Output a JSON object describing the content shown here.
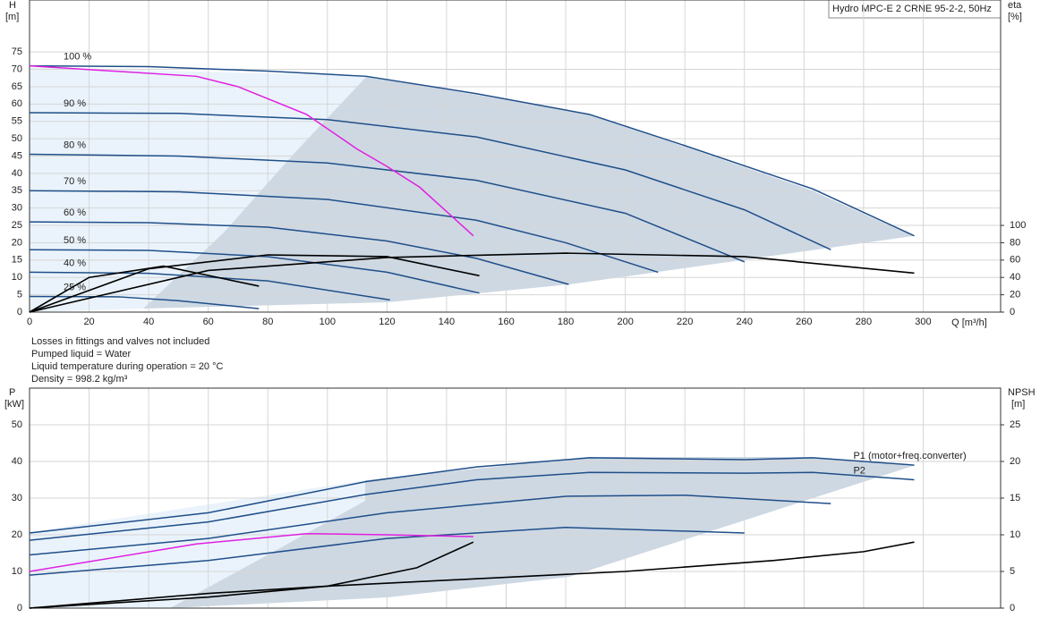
{
  "chart_data": [
    {
      "type": "line",
      "title": "Hydro MPC-E 2 CRNE 95-2-2, 50Hz",
      "x_label": "Q [m³/h]",
      "y_label": [
        "H",
        "[m]"
      ],
      "y2_label": [
        "eta",
        "[%]"
      ],
      "xlim": [
        0,
        326
      ],
      "xticks": [
        0,
        20,
        40,
        60,
        80,
        100,
        120,
        140,
        160,
        180,
        200,
        220,
        240,
        260,
        280,
        300
      ],
      "ylim": [
        0,
        90
      ],
      "yticks": [
        0,
        5,
        10,
        15,
        20,
        25,
        30,
        35,
        40,
        45,
        50,
        55,
        60,
        65,
        70,
        75
      ],
      "y2lim": [
        0,
        360
      ],
      "y2ticks": [
        0,
        20,
        40,
        60,
        80,
        100
      ],
      "grid": true,
      "series": [
        {
          "name": "100 %",
          "color": "#1f4e89",
          "x": [
            0,
            40,
            80,
            113,
            150,
            188,
            220,
            263,
            297
          ],
          "values": [
            71,
            70.8,
            69.5,
            68,
            63,
            57,
            48,
            35.5,
            22
          ]
        },
        {
          "name": "90 %",
          "color": "#1f4e89",
          "x": [
            0,
            50,
            100,
            150,
            200,
            240,
            269
          ],
          "values": [
            57.5,
            57.3,
            55.5,
            50.5,
            41,
            29.5,
            18
          ]
        },
        {
          "name": "80 %",
          "color": "#1f4e89",
          "x": [
            0,
            50,
            100,
            150,
            200,
            240
          ],
          "values": [
            45.5,
            45,
            43,
            38,
            28.5,
            14.5
          ]
        },
        {
          "name": "70 %",
          "color": "#1f4e89",
          "x": [
            0,
            50,
            100,
            150,
            180,
            211
          ],
          "values": [
            35,
            34.7,
            32.5,
            26.5,
            20,
            11.5
          ]
        },
        {
          "name": "60 %",
          "color": "#1f4e89",
          "x": [
            0,
            40,
            80,
            120,
            150,
            181
          ],
          "values": [
            26,
            25.8,
            24.5,
            20.5,
            15.5,
            8
          ]
        },
        {
          "name": "50 %",
          "color": "#1f4e89",
          "x": [
            0,
            40,
            80,
            120,
            151
          ],
          "values": [
            18,
            17.8,
            16,
            11.5,
            5.5
          ]
        },
        {
          "name": "40 %",
          "color": "#1f4e89",
          "x": [
            0,
            40,
            80,
            121
          ],
          "values": [
            11.5,
            11.2,
            9,
            3.5
          ]
        },
        {
          "name": "25 %",
          "color": "#1f4e89",
          "x": [
            0,
            30,
            50,
            77
          ],
          "values": [
            4.5,
            4.4,
            3.3,
            1
          ]
        },
        {
          "color": "#e020e0",
          "x": [
            0,
            56,
            70,
            93,
            110,
            120,
            131,
            140,
            149
          ],
          "values": [
            71,
            68,
            65,
            57,
            47,
            42,
            36,
            29,
            22
          ]
        },
        {
          "color": "#000000",
          "axis": "y2",
          "x": [
            0,
            60,
            120,
            180,
            240,
            297
          ],
          "values": [
            0,
            48,
            63,
            68,
            64,
            45
          ]
        },
        {
          "color": "#000000",
          "axis": "y2",
          "x": [
            0,
            40,
            80,
            120,
            151
          ],
          "values": [
            0,
            50,
            66,
            64,
            42
          ]
        },
        {
          "color": "#000000",
          "axis": "y2",
          "x": [
            0,
            20,
            45,
            77
          ],
          "values": [
            0,
            40,
            53,
            30
          ]
        }
      ]
    },
    {
      "type": "line",
      "y_label": [
        "P",
        "[kW]"
      ],
      "y2_label": [
        "NPSH",
        "[m]"
      ],
      "xlim": [
        0,
        326
      ],
      "xticks": [
        0,
        20,
        40,
        60,
        80,
        100,
        120,
        140,
        160,
        180,
        200,
        220,
        240,
        260,
        280,
        300
      ],
      "ylim": [
        0,
        60
      ],
      "yticks": [
        0,
        10,
        20,
        30,
        40,
        50
      ],
      "y2lim": [
        0,
        30
      ],
      "y2ticks": [
        0,
        5,
        10,
        15,
        20,
        25
      ],
      "grid": true,
      "series": [
        {
          "name": "P1 (motor+freq.converter)",
          "color": "#1f4e89",
          "x": [
            0,
            60,
            113,
            150,
            188,
            240,
            263,
            297
          ],
          "values": [
            20.5,
            26,
            34.5,
            38.5,
            41,
            40.5,
            41,
            39
          ]
        },
        {
          "name": "P2",
          "color": "#1f4e89",
          "x": [
            0,
            60,
            113,
            150,
            188,
            240,
            263,
            297
          ],
          "values": [
            18.5,
            23.5,
            31,
            35,
            37,
            36.8,
            37,
            35
          ]
        },
        {
          "color": "#1f4e89",
          "x": [
            0,
            60,
            120,
            180,
            220,
            269
          ],
          "values": [
            14.5,
            19,
            26,
            30.5,
            30.8,
            28.5
          ]
        },
        {
          "color": "#1f4e89",
          "x": [
            0,
            60,
            120,
            180,
            240
          ],
          "values": [
            9,
            13,
            19,
            22,
            20.5
          ]
        },
        {
          "color": "#e020e0",
          "x": [
            0,
            56,
            93,
            120,
            149
          ],
          "values": [
            10,
            17.5,
            20.3,
            20,
            19.5
          ]
        },
        {
          "color": "#000000",
          "axis": "y2",
          "x": [
            0,
            60,
            100,
            150,
            200,
            250,
            280,
            297
          ],
          "values": [
            0,
            2,
            3,
            4,
            5,
            6.5,
            7.7,
            9
          ]
        },
        {
          "color": "#000000",
          "axis": "y2",
          "x": [
            0,
            60,
            100,
            130,
            149
          ],
          "values": [
            0,
            1.5,
            3,
            5.5,
            9
          ]
        }
      ]
    }
  ],
  "notes": [
    "Losses in fittings and valves not included",
    "Pumped liquid = Water",
    "Liquid temperature during operation = 20 °C",
    "Density = 998.2 kg/m³"
  ]
}
